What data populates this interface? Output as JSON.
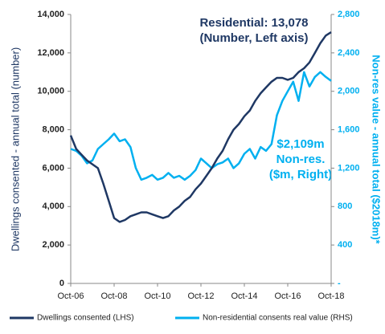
{
  "chart_data": {
    "type": "line",
    "categories": [
      "Oct-06",
      null,
      null,
      null,
      null,
      null,
      null,
      null,
      "Oct-08",
      null,
      null,
      null,
      null,
      null,
      null,
      null,
      "Oct-10",
      null,
      null,
      null,
      null,
      null,
      null,
      null,
      "Oct-12",
      null,
      null,
      null,
      null,
      null,
      null,
      null,
      "Oct-14",
      null,
      null,
      null,
      null,
      null,
      null,
      null,
      "Oct-16",
      null,
      null,
      null,
      null,
      null,
      null,
      null,
      "Oct-18"
    ],
    "series": [
      {
        "name": "Dwellings consented (LHS)",
        "color": "#1f3864",
        "axis": "y",
        "values": [
          7700,
          7000,
          6700,
          6400,
          6200,
          6000,
          5200,
          4300,
          3400,
          3200,
          3300,
          3500,
          3600,
          3700,
          3700,
          3600,
          3500,
          3400,
          3500,
          3800,
          4000,
          4300,
          4500,
          4900,
          5200,
          5600,
          6000,
          6500,
          6900,
          7500,
          8000,
          8300,
          8700,
          9000,
          9500,
          9900,
          10200,
          10500,
          10700,
          10700,
          10600,
          10700,
          11000,
          11200,
          11500,
          12000,
          12500,
          12900,
          13078
        ]
      },
      {
        "name": "Non-residential consents real value (RHS)",
        "color": "#00b0f0",
        "axis": "y2",
        "values": [
          1400,
          1380,
          1330,
          1250,
          1280,
          1400,
          1450,
          1500,
          1560,
          1480,
          1500,
          1420,
          1200,
          1080,
          1100,
          1130,
          1080,
          1100,
          1150,
          1100,
          1120,
          1080,
          1120,
          1180,
          1300,
          1250,
          1200,
          1240,
          1260,
          1300,
          1200,
          1250,
          1350,
          1400,
          1300,
          1420,
          1380,
          1450,
          1750,
          1900,
          2000,
          2100,
          1900,
          2200,
          2050,
          2150,
          2200,
          2150,
          2109
        ]
      }
    ],
    "ylabel": "Dwellings consented - annual total (number)",
    "y2label": "Non-res value - annual total ($2018m)*",
    "ylim": [
      0,
      14000
    ],
    "yticks": [
      0,
      {
        "value": 2000,
        "label": "2,000"
      },
      {
        "value": 4000,
        "label": "4,000"
      },
      {
        "value": 6000,
        "label": "6,000"
      },
      {
        "value": 8000,
        "label": "8,000"
      },
      {
        "value": 10000,
        "label": "10,000"
      },
      {
        "value": 12000,
        "label": "12,000"
      },
      {
        "value": 14000,
        "label": "14,000"
      }
    ],
    "y2lim": [
      0,
      2800
    ],
    "y2ticks": [
      {
        "value": 0,
        "label": "-"
      },
      400,
      800,
      {
        "value": 1200,
        "label": "1,200"
      },
      {
        "value": 1600,
        "label": "1,600"
      },
      {
        "value": 2000,
        "label": "2,000"
      },
      {
        "value": 2400,
        "label": "2,400"
      },
      {
        "value": 2800,
        "label": "2,800"
      }
    ],
    "annotations": [
      "Residential: 13,078",
      "(Number, Left axis)",
      "$2,109m",
      "Non-res.",
      "($m, Right)"
    ],
    "legend": "bottom"
  }
}
